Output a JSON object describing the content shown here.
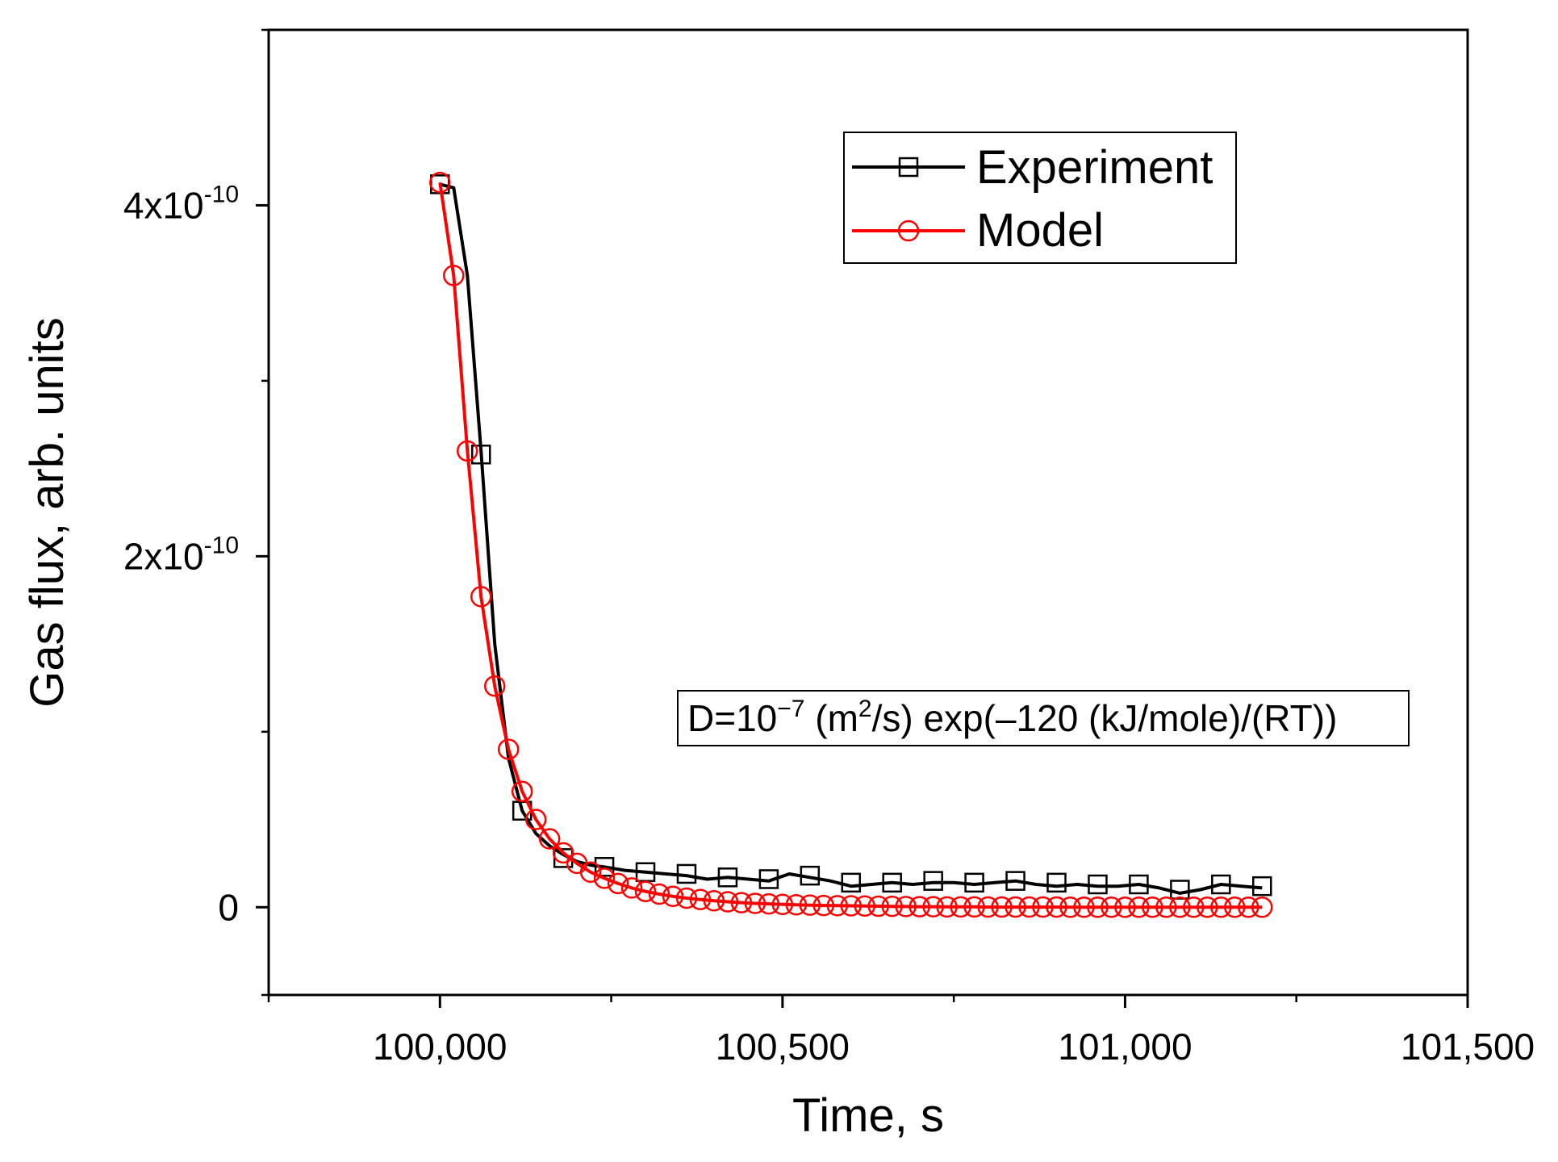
{
  "chart_data": {
    "type": "line",
    "xlabel": "Time, s",
    "ylabel": "Gas flux, arb. units",
    "xlim": [
      99750,
      101500
    ],
    "ylim": [
      -5e-11,
      5e-10
    ],
    "x_major_ticks": [
      100000,
      100500,
      101000,
      101500
    ],
    "x_tick_labels": [
      "100,000",
      "100,500",
      "101,000",
      "101,500"
    ],
    "x_minor_ticks": [
      99750,
      100250,
      100750,
      101250
    ],
    "y_major_ticks": [
      0,
      2e-10,
      4e-10
    ],
    "y_tick_labels": [
      {
        "base": "0",
        "exp": ""
      },
      {
        "base": "2x10",
        "exp": "-10"
      },
      {
        "base": "4x10",
        "exp": "-10"
      }
    ],
    "y_minor_ticks": [
      -5e-11,
      1e-10,
      3e-10,
      5e-10
    ],
    "legend_position": "top-right",
    "annotation": {
      "parts": [
        {
          "t": "D=10",
          "s": "base"
        },
        {
          "t": "−7",
          "s": "sup"
        },
        {
          "t": " (m",
          "s": "base"
        },
        {
          "t": "2",
          "s": "sup"
        },
        {
          "t": "/s) exp(–120 (kJ/mole)/(RT))",
          "s": "base"
        }
      ]
    },
    "series": [
      {
        "name": "Experiment",
        "color": "#000000",
        "marker": "square",
        "x": [
          100000,
          100020,
          100040,
          100060,
          100080,
          100100,
          100120,
          100140,
          100160,
          100180,
          100200,
          100220,
          100240,
          100270,
          100300,
          100330,
          100360,
          100390,
          100420,
          100450,
          100480,
          100510,
          100540,
          100570,
          100600,
          100630,
          100660,
          100690,
          100720,
          100750,
          100780,
          100810,
          100840,
          100870,
          100900,
          100930,
          100960,
          100990,
          101020,
          101050,
          101080,
          101110,
          101140,
          101170,
          101200
        ],
        "y": [
          4.12e-10,
          4.1e-10,
          3.6e-10,
          2.6e-10,
          1.5e-10,
          8.5e-11,
          5.5e-11,
          4.2e-11,
          3.5e-11,
          3e-11,
          2.6e-11,
          2.4e-11,
          2.3e-11,
          2.1e-11,
          2e-11,
          1.9e-11,
          1.8e-11,
          1.6e-11,
          1.7e-11,
          1.6e-11,
          1.5e-11,
          1.9e-11,
          1.7e-11,
          1.5e-11,
          1.2e-11,
          1.3e-11,
          1.4e-11,
          1.3e-11,
          1.4e-11,
          1.4e-11,
          1.3e-11,
          1.4e-11,
          1.5e-11,
          1.3e-11,
          1.2e-11,
          1.3e-11,
          1.2e-11,
          1.2e-11,
          1.3e-11,
          1.1e-11,
          8e-12,
          1e-11,
          1.3e-11,
          1.2e-11,
          1.1e-11
        ],
        "marker_x": [
          100000,
          100060,
          100120,
          100180,
          100240,
          100300,
          100360,
          100420,
          100480,
          100540,
          100600,
          100660,
          100720,
          100780,
          100840,
          100900,
          100960,
          101020,
          101080,
          101140,
          101200
        ],
        "marker_y": [
          4.12e-10,
          2.58e-10,
          5.5e-11,
          2.8e-11,
          2.3e-11,
          2e-11,
          1.9e-11,
          1.7e-11,
          1.6e-11,
          1.8e-11,
          1.4e-11,
          1.4e-11,
          1.5e-11,
          1.4e-11,
          1.5e-11,
          1.4e-11,
          1.3e-11,
          1.3e-11,
          1e-11,
          1.3e-11,
          1.2e-11
        ]
      },
      {
        "name": "Model",
        "color": "#ff0000",
        "marker": "circle",
        "x": [
          100000,
          100020,
          100040,
          100060,
          100080,
          100100,
          100120,
          100140,
          100160,
          100180,
          100200,
          100220,
          100240,
          100260,
          100280,
          100300,
          100320,
          100340,
          100360,
          100380,
          100400,
          100420,
          100440,
          100460,
          100480,
          100500,
          100520,
          100540,
          100560,
          100580,
          100600,
          100620,
          100640,
          100660,
          100680,
          100700,
          100720,
          100740,
          100760,
          100780,
          100800,
          100820,
          100840,
          100860,
          100880,
          100900,
          100920,
          100940,
          100960,
          100980,
          101000,
          101020,
          101040,
          101060,
          101080,
          101100,
          101120,
          101140,
          101160,
          101180,
          101200
        ],
        "y": [
          4.13e-10,
          3.6e-10,
          2.6e-10,
          1.77e-10,
          1.26e-10,
          9e-11,
          6.6e-11,
          5e-11,
          3.9e-11,
          3.1e-11,
          2.5e-11,
          2e-11,
          1.65e-11,
          1.35e-11,
          1.1e-11,
          9e-12,
          7.5e-12,
          6.2e-12,
          5.2e-12,
          4.4e-12,
          3.7e-12,
          3.1e-12,
          2.6e-12,
          2.2e-12,
          1.9e-12,
          1.6e-12,
          1.4e-12,
          1.2e-12,
          1e-12,
          9e-13,
          8e-13,
          7e-13,
          6e-13,
          5e-13,
          4e-13,
          3e-13,
          3e-13,
          2e-13,
          2e-13,
          2e-13,
          1e-13,
          1e-13,
          1e-13,
          1e-13,
          1e-13,
          1e-13,
          0,
          0,
          0,
          0,
          0,
          0,
          0,
          0,
          0,
          0,
          0,
          0,
          0,
          0,
          0
        ]
      }
    ]
  },
  "colors": {
    "experiment": "#000000",
    "model": "#ff0000",
    "axis": "#000000",
    "background": "#ffffff"
  }
}
